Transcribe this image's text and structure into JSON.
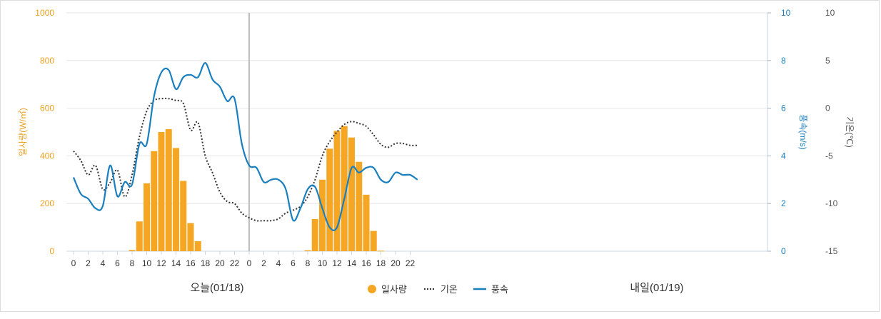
{
  "colors": {
    "solar": "#f5a623",
    "temp": "#333333",
    "wind": "#1a7fbf",
    "grid": "#e6e6e6",
    "divider": "#bdbdbd"
  },
  "day_labels": {
    "today": "오늘(01/18)",
    "tomorrow": "내일(01/19)"
  },
  "legend": {
    "solar": "일사량",
    "temp": "기온",
    "wind": "풍속"
  },
  "chart_data": {
    "type": "bar+line",
    "title": "",
    "x_hours": [
      0,
      1,
      2,
      3,
      4,
      5,
      6,
      7,
      8,
      9,
      10,
      11,
      12,
      13,
      14,
      15,
      16,
      17,
      18,
      19,
      20,
      21,
      22,
      23,
      24,
      25,
      26,
      27,
      28,
      29,
      30,
      31,
      32,
      33,
      34,
      35,
      36,
      37,
      38,
      39,
      40,
      41,
      42,
      43,
      44,
      45,
      46,
      47
    ],
    "x_tick_labels": [
      "0",
      "2",
      "4",
      "6",
      "8",
      "10",
      "12",
      "14",
      "16",
      "18",
      "20",
      "22",
      "0",
      "2",
      "4",
      "6",
      "8",
      "10",
      "12",
      "14",
      "16",
      "18",
      "20",
      "22"
    ],
    "axes": {
      "solar": {
        "label": "일사량(W/㎡)",
        "range": [
          0,
          1000
        ],
        "ticks": [
          "0",
          "200",
          "400",
          "600",
          "800",
          "1000"
        ]
      },
      "wind": {
        "label": "풍속(m/s)",
        "range": [
          0,
          10
        ],
        "ticks": [
          "0",
          "2",
          "4",
          "6",
          "8",
          "10"
        ]
      },
      "temp": {
        "label": "기온(℃)",
        "range": [
          -15,
          10
        ],
        "ticks": [
          "-15",
          "-10",
          "-5",
          "0",
          "5",
          "10"
        ]
      }
    },
    "series": [
      {
        "name": "일사량",
        "type": "bar",
        "axis": "solar",
        "values": [
          0,
          0,
          0,
          0,
          0,
          0,
          0,
          0,
          5,
          125,
          285,
          420,
          500,
          512,
          433,
          295,
          118,
          42,
          0,
          0,
          0,
          0,
          0,
          0,
          0,
          0,
          0,
          0,
          0,
          0,
          0,
          0,
          4,
          135,
          300,
          430,
          505,
          525,
          477,
          375,
          237,
          85,
          2,
          0,
          0,
          0,
          0,
          0
        ]
      },
      {
        "name": "기온",
        "type": "line",
        "style": "dotted",
        "axis": "temp",
        "values": [
          -4.5,
          -5.5,
          -7.0,
          -6.0,
          -8.5,
          -7.8,
          -6.5,
          -9.3,
          -7.0,
          -3.0,
          -0.3,
          0.8,
          1.0,
          1.0,
          0.8,
          0.5,
          -2.3,
          -1.5,
          -5.0,
          -6.8,
          -8.8,
          -9.8,
          -10.0,
          -11.0,
          -11.5,
          -11.8,
          -11.8,
          -11.8,
          -11.6,
          -11.0,
          -10.7,
          -10.3,
          -9.3,
          -7.5,
          -5.0,
          -3.5,
          -2.5,
          -1.7,
          -1.4,
          -1.6,
          -1.9,
          -2.8,
          -3.8,
          -4.1,
          -3.7,
          -3.7,
          -3.9,
          -3.9
        ]
      },
      {
        "name": "풍속",
        "type": "line",
        "style": "solid",
        "axis": "wind",
        "values": [
          3.1,
          2.4,
          2.2,
          1.8,
          1.9,
          3.6,
          2.3,
          2.9,
          2.8,
          4.5,
          4.5,
          6.5,
          7.5,
          7.6,
          6.8,
          7.3,
          7.4,
          7.3,
          7.9,
          7.2,
          6.9,
          6.3,
          6.4,
          4.5,
          3.6,
          3.5,
          2.9,
          3.0,
          3.0,
          2.6,
          1.3,
          1.8,
          2.6,
          2.7,
          1.8,
          1.0,
          1.0,
          2.2,
          3.5,
          3.3,
          3.5,
          3.5,
          3.0,
          2.9,
          3.3,
          3.2,
          3.2,
          3.0
        ]
      }
    ]
  }
}
